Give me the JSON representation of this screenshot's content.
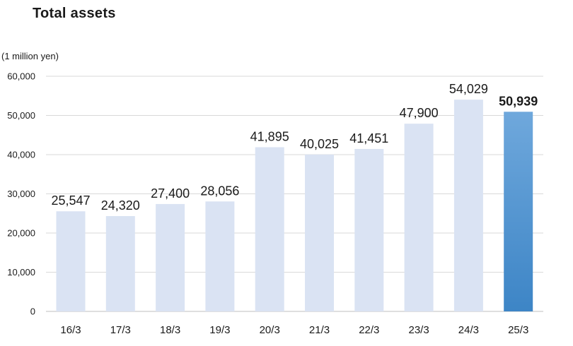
{
  "chart_data": {
    "type": "bar",
    "title": "Total assets",
    "ylabel": "(1 million yen)",
    "xlabel": "",
    "categories": [
      "16/3",
      "17/3",
      "18/3",
      "19/3",
      "20/3",
      "21/3",
      "22/3",
      "23/3",
      "24/3",
      "25/3"
    ],
    "values": [
      25547,
      24320,
      27400,
      28056,
      41895,
      40025,
      41451,
      47900,
      54029,
      50939
    ],
    "data_labels": [
      "25,547",
      "24,320",
      "27,400",
      "28,056",
      "41,895",
      "40,025",
      "41,451",
      "47,900",
      "54,029",
      "50,939"
    ],
    "y_ticks": [
      0,
      10000,
      20000,
      30000,
      40000,
      50000,
      60000
    ],
    "y_tick_labels": [
      "0",
      "10,000",
      "20,000",
      "30,000",
      "40,000",
      "50,000",
      "60,000"
    ],
    "ylim": [
      0,
      60000
    ],
    "grid": true,
    "highlight_index": 9,
    "colors": {
      "bar": "#dae3f3",
      "highlight_top": "#6fa8dc",
      "highlight_bottom": "#3d85c6",
      "grid": "#d9d9d9",
      "axis": "#bfbfbf"
    }
  }
}
